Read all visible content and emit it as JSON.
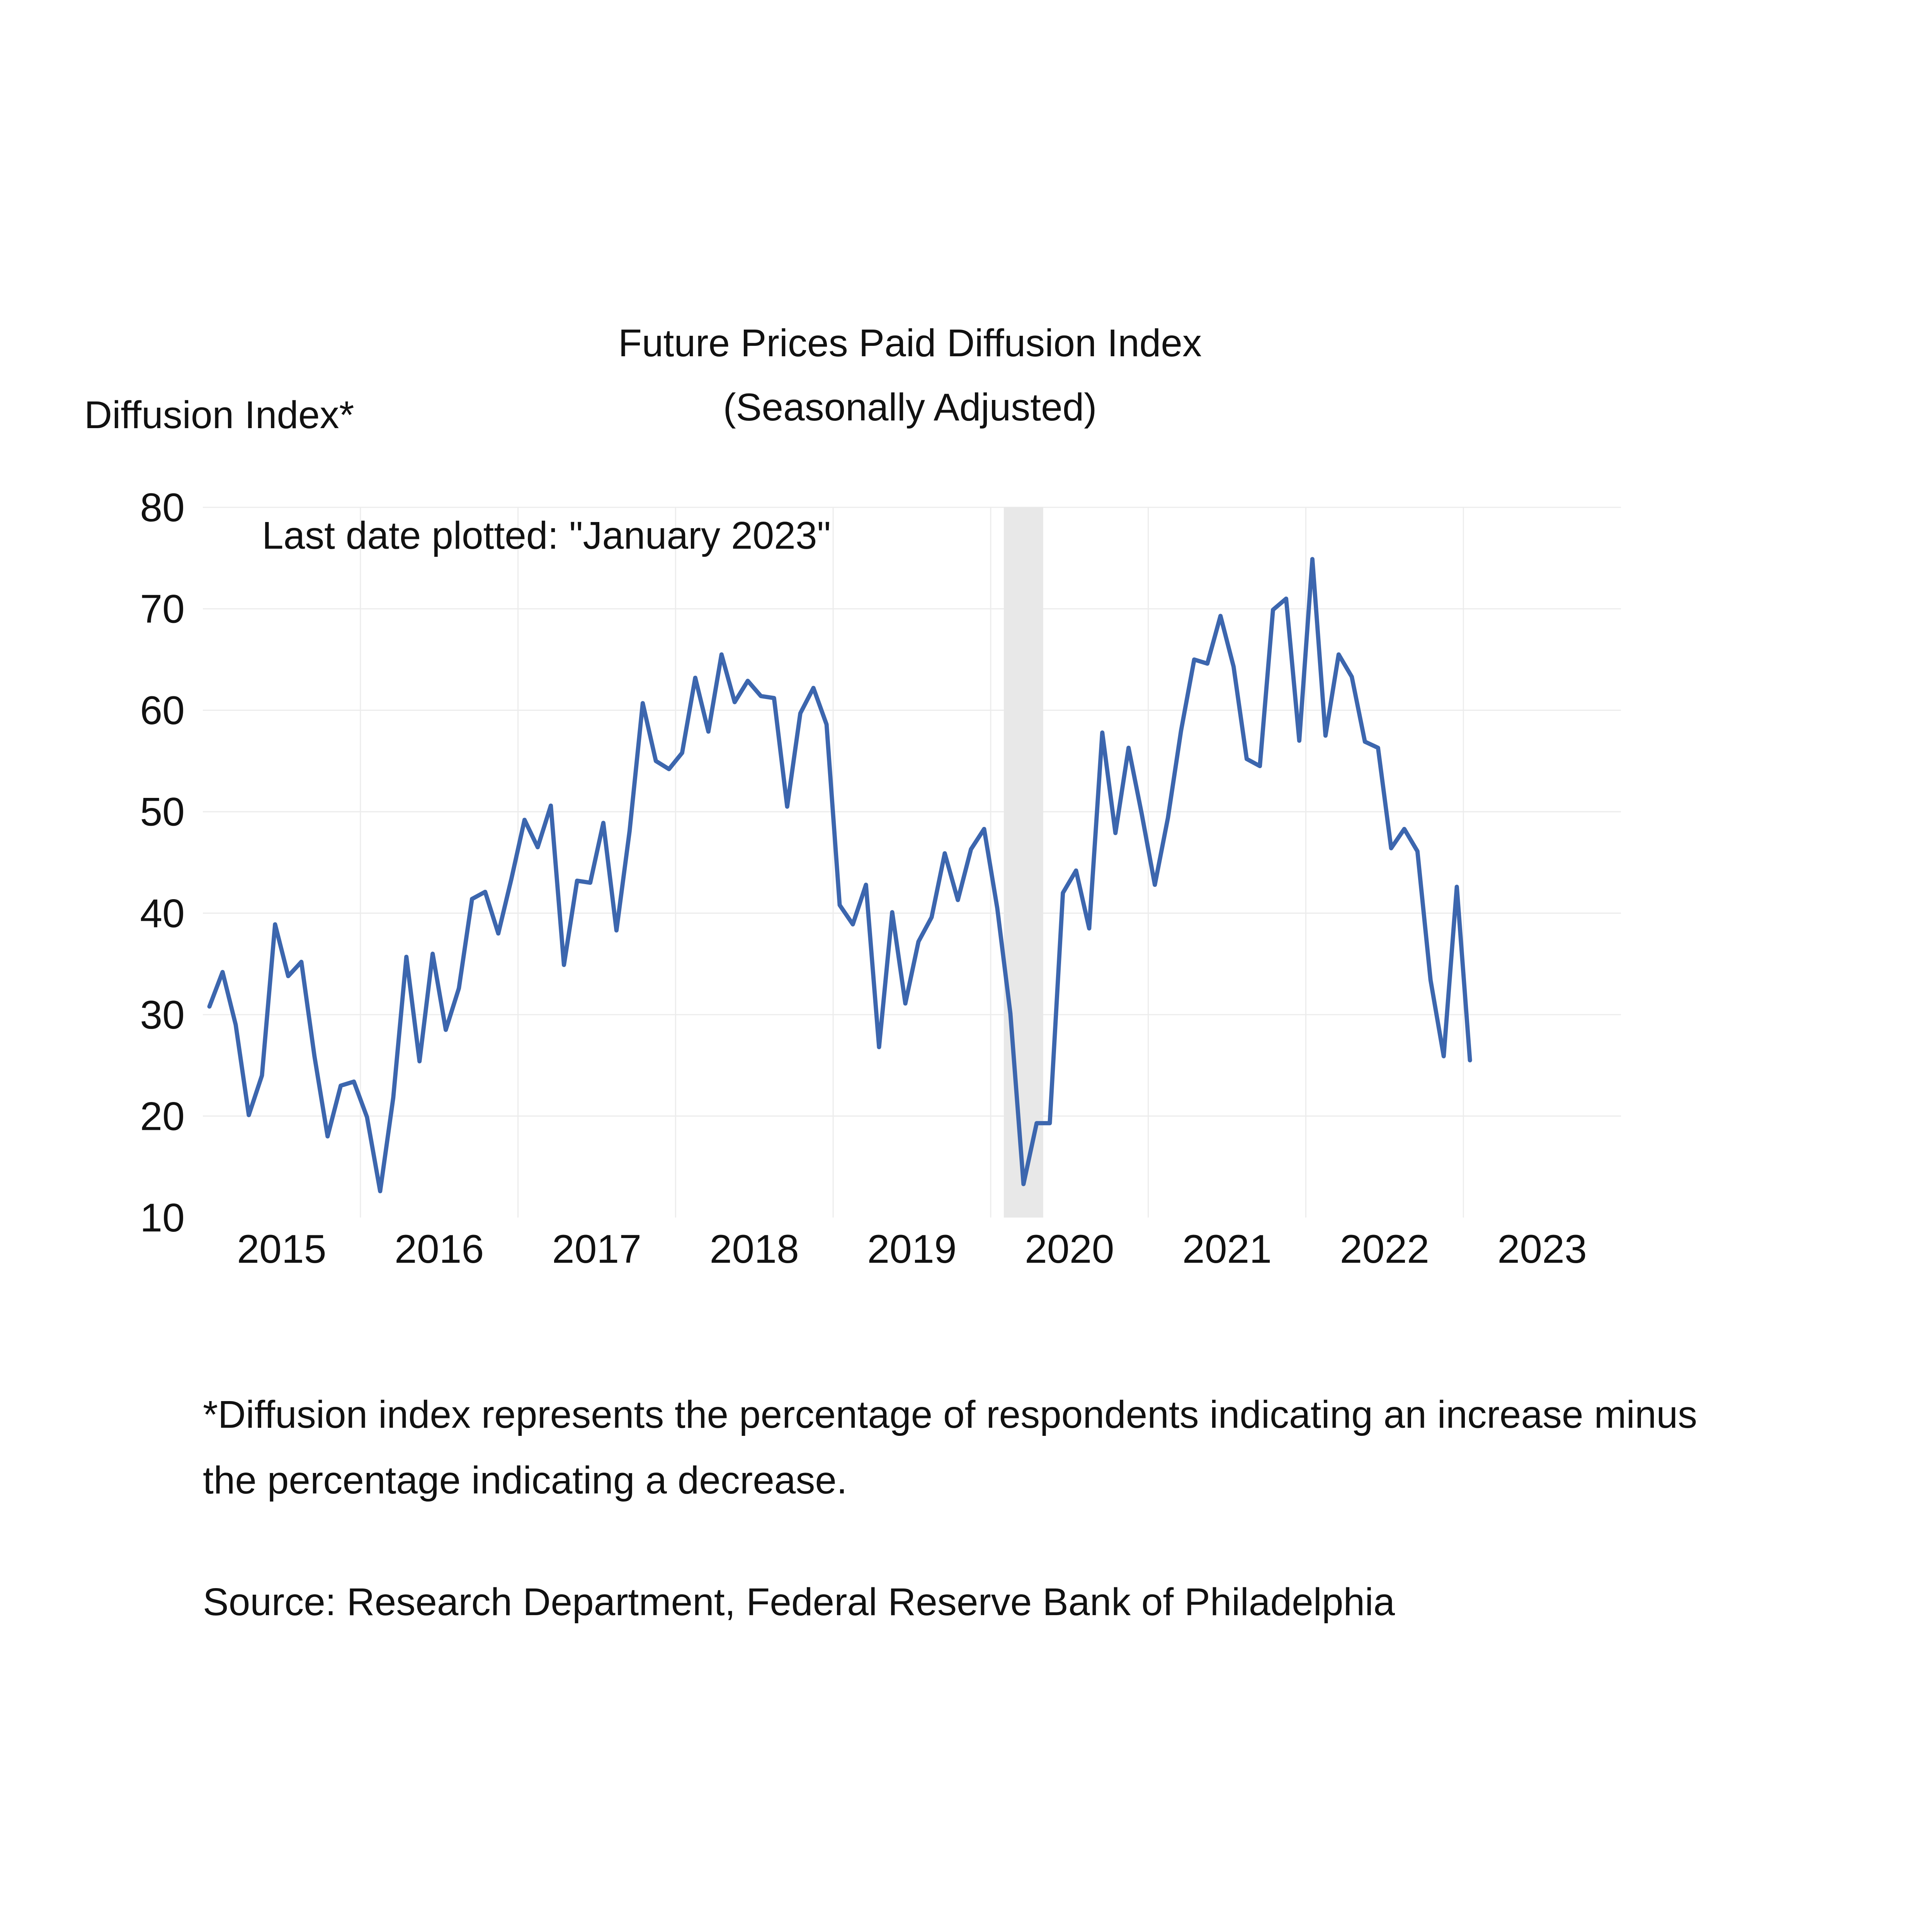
{
  "chart_data": {
    "type": "line",
    "title": "Future Prices Paid Diffusion Index",
    "subtitle": "(Seasonally Adjusted)",
    "ylabel": "Diffusion Index*",
    "xlabel": "",
    "annotation": "Last date plotted: \"January 2023\"",
    "ylim": [
      10,
      80
    ],
    "yticks": [
      10,
      20,
      30,
      40,
      50,
      60,
      70,
      80
    ],
    "xlim": [
      "2015-01",
      "2023-12"
    ],
    "xtick_labels": [
      "2015",
      "2016",
      "2017",
      "2018",
      "2019",
      "2020",
      "2021",
      "2022",
      "2023"
    ],
    "grid": true,
    "recession_shading": {
      "start": "2020-02",
      "end": "2020-04",
      "color": "#e8e8e8"
    },
    "line_color": "#3c66ae",
    "series": [
      {
        "start": "2015-01",
        "values": [
          30.8,
          34.2,
          29.0,
          20.1,
          24.0,
          38.9,
          33.8,
          35.2,
          25.9,
          18.0,
          23.0,
          23.4,
          19.9,
          12.6,
          21.8,
          35.7,
          25.4,
          36.0,
          28.5,
          32.6,
          41.4,
          42.1,
          38.0,
          43.4,
          49.2,
          46.5,
          50.6,
          34.9,
          43.2,
          43.0,
          48.9,
          38.3,
          48.1,
          60.7,
          55.0,
          54.2,
          55.8,
          63.2,
          57.9,
          65.5,
          60.8,
          62.9,
          61.4,
          61.2,
          50.5,
          59.7,
          62.2,
          58.6,
          40.8,
          38.9,
          42.8,
          26.8,
          40.1,
          31.1,
          37.2,
          39.6,
          45.9,
          41.3,
          46.3,
          48.3,
          40.5,
          30.1,
          13.3,
          19.3,
          19.3,
          42.0,
          44.2,
          38.5,
          57.8,
          47.9,
          56.3,
          49.8,
          42.8,
          49.4,
          58.0,
          65.0,
          64.6,
          69.3,
          64.3,
          55.2,
          54.5,
          69.9,
          71.0,
          57.0,
          74.9,
          57.5,
          65.5,
          63.3,
          56.9,
          56.3,
          46.4,
          48.3,
          46.1,
          33.4,
          25.9,
          42.6,
          25.5
        ]
      }
    ]
  },
  "footnote": {
    "line1": "*Diffusion index represents the percentage of respondents indicating an increase minus",
    "line2": "the percentage indicating a decrease.",
    "source": "Source: Research Department, Federal Reserve Bank of Philadelphia"
  }
}
